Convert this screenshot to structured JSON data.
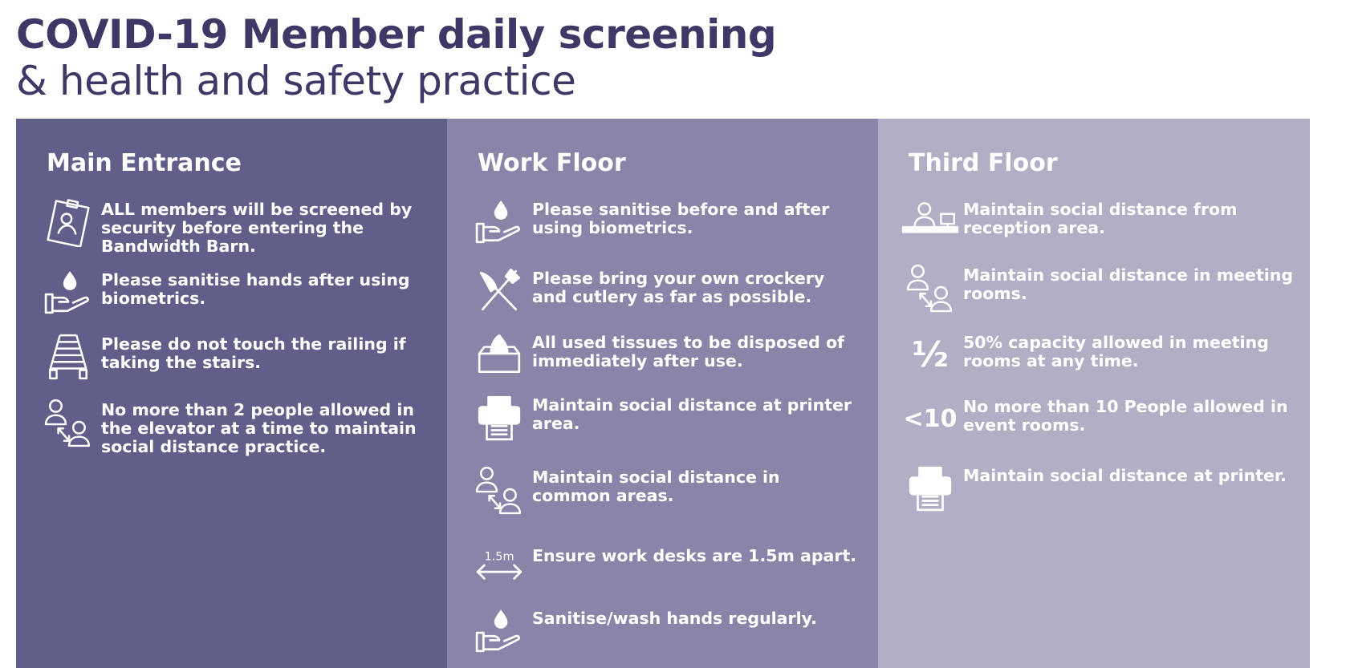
{
  "header": {
    "title": "COVID-19 Member daily screening",
    "subtitle": "& health and safety practice"
  },
  "colors": {
    "title": "#3d3865",
    "main_entrance_bg": "#625e8a",
    "work_floor_bg": "#8985a8",
    "third_floor_bg": "#b1aec5",
    "text": "#ffffff"
  },
  "columns": [
    {
      "title": "Main Entrance",
      "items": [
        {
          "icon": "id-badge-icon",
          "text": "ALL members will be screened by security before entering the Bandwidth Barn."
        },
        {
          "icon": "hand-sanitiser-icon",
          "text": "Please sanitise hands after using biometrics."
        },
        {
          "icon": "stairs-railing-icon",
          "text": "Please do not touch the railing if taking the stairs."
        },
        {
          "icon": "social-distance-people-icon",
          "text": "No more than 2 people allowed in the elevator at a time to maintain social distance practice."
        }
      ]
    },
    {
      "title": "Work Floor",
      "items": [
        {
          "icon": "hand-sanitiser-icon",
          "text": "Please sanitise before and after using biometrics."
        },
        {
          "icon": "cutlery-icon",
          "text": "Please bring your own crockery and cutlery as far as possible."
        },
        {
          "icon": "tissue-box-icon",
          "text": "All used tissues to be disposed of immediately after use."
        },
        {
          "icon": "printer-icon",
          "text": "Maintain social distance at printer area."
        },
        {
          "icon": "social-distance-people-icon",
          "text": "Maintain social distance in common areas."
        },
        {
          "icon": "distance-arrow-icon",
          "icon_label": "1.5m",
          "text": "Ensure work desks are 1.5m apart."
        },
        {
          "icon": "hand-sanitiser-icon",
          "text": "Sanitise/wash hands regularly."
        }
      ]
    },
    {
      "title": "Third Floor",
      "items": [
        {
          "icon": "reception-desk-icon",
          "text": "Maintain social distance from reception area."
        },
        {
          "icon": "social-distance-people-icon",
          "text": "Maintain social distance in meeting rooms."
        },
        {
          "icon": "half-fraction-icon",
          "icon_label": "½",
          "text": "50% capacity allowed in meeting rooms at any time."
        },
        {
          "icon": "less-than-ten-icon",
          "icon_label": "<10",
          "text": "No more than 10 People allowed in event rooms."
        },
        {
          "icon": "printer-icon",
          "text": "Maintain social distance at printer."
        }
      ]
    }
  ]
}
